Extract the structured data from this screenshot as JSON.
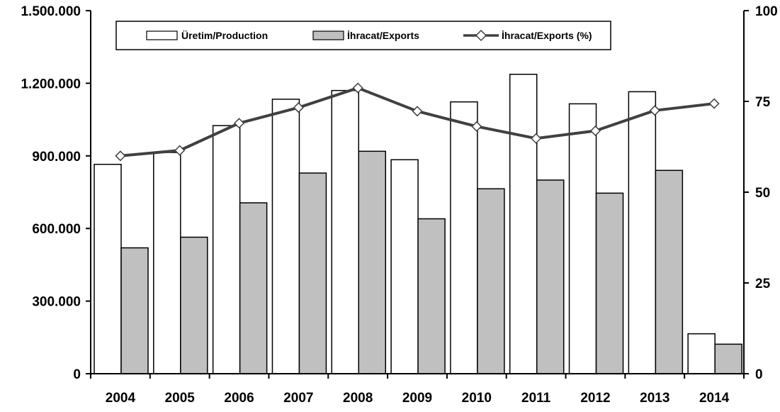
{
  "chart_data": {
    "type": "bar",
    "title": "",
    "xlabel": "",
    "ylabel": "",
    "categories": [
      "2004",
      "2005",
      "2006",
      "2007",
      "2008",
      "2009",
      "2010",
      "2011",
      "2012",
      "2013",
      "2014"
    ],
    "series": [
      {
        "name": "Üretim/Production",
        "kind": "bar",
        "axis": "left",
        "color": "#ffffff",
        "values": [
          865000,
          914000,
          1025000,
          1134000,
          1170000,
          884000,
          1123000,
          1237000,
          1115000,
          1165000,
          165000
        ]
      },
      {
        "name": "İhracat/Exports",
        "kind": "bar",
        "axis": "left",
        "color": "#c0c0c0",
        "values": [
          520000,
          564000,
          706000,
          829000,
          919000,
          640000,
          764000,
          800000,
          746000,
          840000,
          122000
        ]
      },
      {
        "name": "İhracat/Exports (%)",
        "kind": "line",
        "axis": "right",
        "color": "#404040",
        "values": [
          60.0,
          61.5,
          69.0,
          73.3,
          78.7,
          72.3,
          68.1,
          64.8,
          66.9,
          72.5,
          74.4
        ]
      }
    ],
    "y_left": {
      "ylim": [
        0,
        1500000
      ],
      "ticks": [
        0,
        300000,
        600000,
        900000,
        1200000,
        1500000
      ],
      "tick_labels": [
        "0",
        "300.000",
        "600.000",
        "900.000",
        "1.200.000",
        "1.500.000"
      ]
    },
    "y_right": {
      "ylim": [
        0,
        100
      ],
      "ticks": [
        0,
        25,
        50,
        75,
        100
      ],
      "tick_labels": [
        "0",
        "25",
        "50",
        "75",
        "100"
      ]
    },
    "grid": false,
    "legend": {
      "placement": "top-left"
    }
  }
}
